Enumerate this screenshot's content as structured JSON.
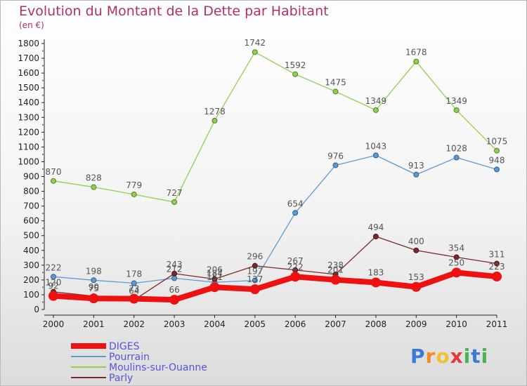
{
  "chart_data": {
    "type": "line",
    "title": "Evolution du Montant de la Dette par Habitant",
    "subtitle": "(en €)",
    "xlabel": "",
    "ylabel": "",
    "x": [
      "2000",
      "2001",
      "2002",
      "2003",
      "2004",
      "2005",
      "2006",
      "2007",
      "2008",
      "2009",
      "2010",
      "2011"
    ],
    "ylim": [
      0,
      1800
    ],
    "yticks": [
      0,
      100,
      200,
      300,
      400,
      500,
      600,
      700,
      800,
      900,
      1000,
      1100,
      1200,
      1300,
      1400,
      1500,
      1600,
      1700,
      1800
    ],
    "grid": false,
    "legend_position": "bottom-left",
    "series": [
      {
        "name": "Moulins-sur-Ouanne",
        "color": "#8fd14f",
        "values": [
          870,
          828,
          779,
          727,
          1278,
          1742,
          1592,
          1475,
          1349,
          1678,
          1349,
          1075
        ]
      },
      {
        "name": "Pourrain",
        "color": "#5b9bd5",
        "values": [
          222,
          198,
          178,
          212,
          184,
          197,
          654,
          976,
          1043,
          913,
          1028,
          948
        ]
      },
      {
        "name": "Parly",
        "color": "#7b2a2a",
        "values": [
          120,
          90,
          64,
          243,
          206,
          296,
          267,
          238,
          494,
          400,
          354,
          311
        ]
      },
      {
        "name": "DIGES",
        "color": "#ee1111",
        "values": [
          92,
          75,
          73,
          66,
          151,
          137,
          222,
          201,
          183,
          153,
          250,
          223
        ]
      }
    ],
    "legend": [
      "DIGES",
      "Pourrain",
      "Moulins-sur-Ouanne",
      "Parly"
    ]
  },
  "logo": {
    "text": "Proxiti",
    "letters": [
      "P",
      "r",
      "o",
      "x",
      "i",
      "t",
      "i"
    ]
  }
}
